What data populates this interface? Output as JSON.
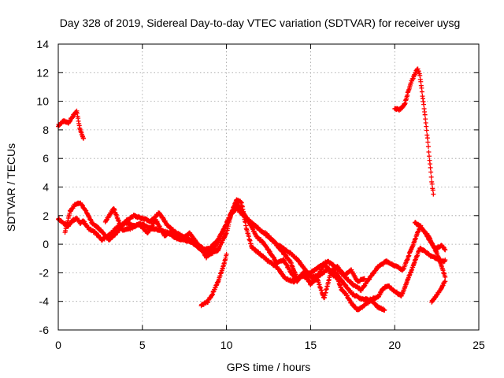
{
  "chart_data": {
    "type": "scatter",
    "title": "Day 328 of 2019, Sidereal Day-to-day VTEC variation (SDTVAR) for receiver uysg",
    "xlabel": "GPS time / hours",
    "ylabel": "SDTVAR / TECUs",
    "xlim": [
      0,
      25
    ],
    "ylim": [
      -6,
      14
    ],
    "xticks": [
      0,
      5,
      10,
      15,
      20,
      25
    ],
    "yticks": [
      -6,
      -4,
      -2,
      0,
      2,
      4,
      6,
      8,
      10,
      12,
      14
    ],
    "grid": true,
    "marker": "+",
    "series": [
      {
        "name": "SDTVAR",
        "color": "#ff0000",
        "tracks": [
          {
            "x": [
              0.0,
              0.3,
              0.6,
              0.9,
              1.1,
              1.3,
              1.5
            ],
            "y": [
              8.3,
              8.6,
              8.5,
              9.0,
              9.3,
              8.0,
              7.4
            ]
          },
          {
            "x": [
              0.0,
              0.3,
              0.6,
              0.9,
              1.1,
              1.3,
              1.5,
              1.8,
              2.2,
              2.6,
              3.0,
              3.5,
              4.0,
              4.5,
              5.0,
              5.5,
              6.0,
              6.5,
              7.0,
              7.5,
              8.0,
              8.5,
              9.0,
              9.5,
              10.0,
              10.3,
              10.6,
              11.0,
              11.5,
              12.0,
              12.5,
              13.0,
              13.5,
              14.0,
              14.5,
              15.0,
              15.5,
              16.0,
              16.5,
              17.0,
              17.5,
              18.0,
              18.5,
              19.0,
              19.3,
              19.6,
              20.0,
              20.4,
              20.8,
              21.2,
              21.5,
              21.8,
              22.1,
              22.5,
              22.9,
              23.0
            ],
            "y": [
              1.8,
              1.5,
              1.3,
              1.7,
              1.8,
              1.5,
              1.6,
              1.1,
              0.8,
              0.3,
              0.6,
              1.2,
              1.5,
              1.3,
              1.4,
              1.1,
              1.0,
              0.8,
              0.4,
              0.3,
              0.1,
              -0.4,
              -0.3,
              0.3,
              1.4,
              2.1,
              2.5,
              2.0,
              1.5,
              1.0,
              0.5,
              0.0,
              -0.4,
              -0.8,
              -1.5,
              -2.3,
              -2.2,
              -1.8,
              -2.0,
              -2.8,
              -3.5,
              -3.8,
              -3.9,
              -3.7,
              -3.1,
              -2.9,
              -3.3,
              -3.6,
              -2.4,
              -1.2,
              -0.3,
              -0.5,
              -0.8,
              -1.0,
              -1.2,
              -1.1
            ]
          },
          {
            "x": [
              0.4,
              0.7,
              1.0,
              1.3,
              1.6,
              2.0,
              2.5,
              3.0,
              3.5,
              4.0,
              4.5,
              5.0,
              5.5,
              6.0,
              6.5,
              7.0,
              7.5,
              8.0,
              8.5,
              9.0,
              9.5,
              10.0,
              10.3,
              10.6,
              10.9,
              11.2,
              11.5,
              12.0,
              12.5,
              13.0,
              13.5,
              14.0,
              14.5,
              15.0,
              15.5,
              16.0,
              16.5,
              17.0,
              17.5,
              18.0,
              18.5,
              19.0,
              19.5,
              20.0,
              20.5,
              21.0,
              21.5,
              22.0,
              22.5,
              23.0
            ],
            "y": [
              0.8,
              2.3,
              2.8,
              2.9,
              2.4,
              1.5,
              1.0,
              0.3,
              0.8,
              1.6,
              2.0,
              1.8,
              1.6,
              2.2,
              1.3,
              0.8,
              0.5,
              0.2,
              -0.2,
              -0.7,
              -0.4,
              0.8,
              2.2,
              3.1,
              2.9,
              1.0,
              -0.2,
              -0.7,
              -1.2,
              -1.6,
              -2.4,
              -2.6,
              -2.2,
              -2.0,
              -1.6,
              -1.2,
              -1.6,
              -2.2,
              -2.8,
              -3.2,
              -2.4,
              -1.6,
              -1.2,
              -1.5,
              -1.8,
              -0.3,
              1.2,
              0.6,
              -0.6,
              -2.3
            ]
          },
          {
            "x": [
              2.8,
              3.3,
              3.8,
              4.3,
              4.8,
              5.3,
              5.8,
              6.3,
              6.8,
              7.3,
              7.8,
              8.3,
              8.8,
              9.3,
              9.8,
              10.2,
              10.6,
              11.0,
              11.4,
              11.8,
              12.2,
              12.6,
              13.0,
              13.4,
              13.8,
              14.2,
              14.6,
              15.0,
              15.4,
              15.8,
              16.2,
              16.6,
              17.0,
              17.4,
              17.8,
              18.2
            ],
            "y": [
              1.6,
              2.5,
              1.0,
              1.1,
              1.4,
              0.8,
              1.7,
              0.6,
              0.9,
              0.3,
              0.8,
              0.0,
              -0.9,
              -0.2,
              0.9,
              2.0,
              2.9,
              2.2,
              1.4,
              0.5,
              0.1,
              -0.6,
              -1.3,
              -1.1,
              -1.9,
              -2.6,
              -1.9,
              -2.8,
              -2.3,
              -1.4,
              -1.9,
              -1.6,
              -2.2,
              -1.8,
              -2.6,
              -2.4
            ]
          },
          {
            "x": [
              8.5,
              8.9,
              9.2,
              9.5,
              9.8,
              10.0
            ],
            "y": [
              -4.3,
              -4.0,
              -3.4,
              -2.6,
              -1.6,
              -0.7
            ]
          },
          {
            "x": [
              12.3,
              12.8,
              13.3,
              13.8,
              14.2,
              14.6,
              15.0,
              15.4,
              15.8,
              16.2,
              16.6,
              16.8,
              17.1,
              17.4,
              17.8,
              18.2,
              18.6,
              19.0,
              19.4
            ],
            "y": [
              0.8,
              0.2,
              -0.5,
              -1.2,
              -2.4,
              -2.2,
              -2.7,
              -2.4,
              -3.8,
              -2.0,
              -2.4,
              -3.1,
              -3.5,
              -4.1,
              -4.6,
              -4.3,
              -3.9,
              -4.4,
              -4.6
            ]
          },
          {
            "x": [
              20.0,
              20.3,
              20.6,
              20.8,
              21.0,
              21.2,
              21.35,
              21.5,
              21.65,
              21.8,
              22.0,
              22.1,
              22.2,
              22.3
            ],
            "y": [
              9.5,
              9.4,
              9.8,
              10.7,
              11.4,
              11.9,
              12.3,
              11.8,
              10.4,
              9.1,
              6.8,
              5.6,
              4.4,
              3.5
            ]
          },
          {
            "x": [
              21.2,
              21.6,
              22.0,
              22.4,
              22.8,
              23.0
            ],
            "y": [
              1.5,
              1.2,
              0.4,
              -0.3,
              -0.1,
              -0.4
            ]
          },
          {
            "x": [
              22.2,
              22.5,
              22.8,
              23.0
            ],
            "y": [
              -4.0,
              -3.6,
              -3.0,
              -2.6
            ]
          }
        ]
      }
    ]
  }
}
